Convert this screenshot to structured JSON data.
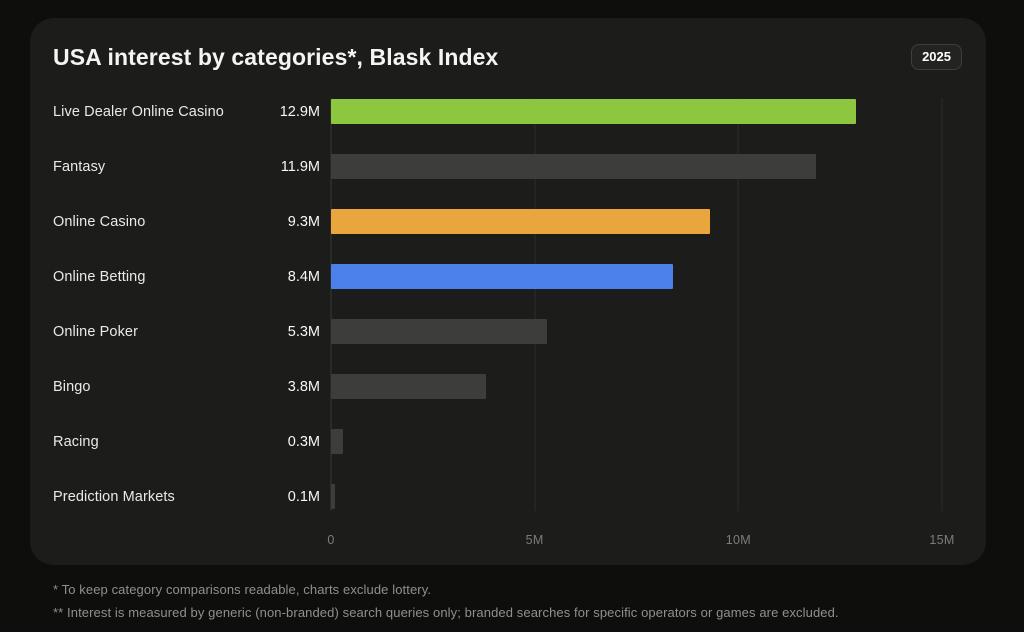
{
  "header": {
    "title": "USA interest by categories*, Blask Index",
    "year_badge": "2025"
  },
  "chart_data": {
    "type": "bar",
    "orientation": "horizontal",
    "title": "USA interest by categories*, Blask Index",
    "categories": [
      "Live Dealer Online Casino",
      "Fantasy",
      "Online Casino",
      "Online Betting",
      "Online Poker",
      "Bingo",
      "Racing",
      "Prediction Markets"
    ],
    "values": [
      12.9,
      11.9,
      9.3,
      8.4,
      5.3,
      3.8,
      0.3,
      0.1
    ],
    "value_labels": [
      "12.9M",
      "11.9M",
      "9.3M",
      "8.4M",
      "5.3M",
      "3.8M",
      "0.3M",
      "0.1M"
    ],
    "bar_colors": [
      "#8dc63f",
      "#3d3d3b",
      "#e8a63c",
      "#4c80ea",
      "#3d3d3b",
      "#3d3d3b",
      "#3d3d3b",
      "#3d3d3b"
    ],
    "xlim": [
      0,
      15
    ],
    "x_ticks": [
      {
        "label": "0",
        "value": 0
      },
      {
        "label": "5M",
        "value": 5
      },
      {
        "label": "10M",
        "value": 10
      },
      {
        "label": "15M",
        "value": 15
      }
    ],
    "grid": true,
    "legend": false
  },
  "footnotes": [
    "* To keep category comparisons readable, charts exclude lottery.",
    "** Interest is measured by generic (non-branded) search queries only; branded searches for specific operators or games are excluded."
  ],
  "colors": {
    "page_bg": "#0e0e0d",
    "card_bg": "#1c1c1a",
    "accent_green": "#8dc63f",
    "accent_orange": "#e8a63c",
    "accent_blue": "#4c80ea",
    "bar_gray": "#3d3d3b",
    "gridline": "#2b2b29"
  }
}
